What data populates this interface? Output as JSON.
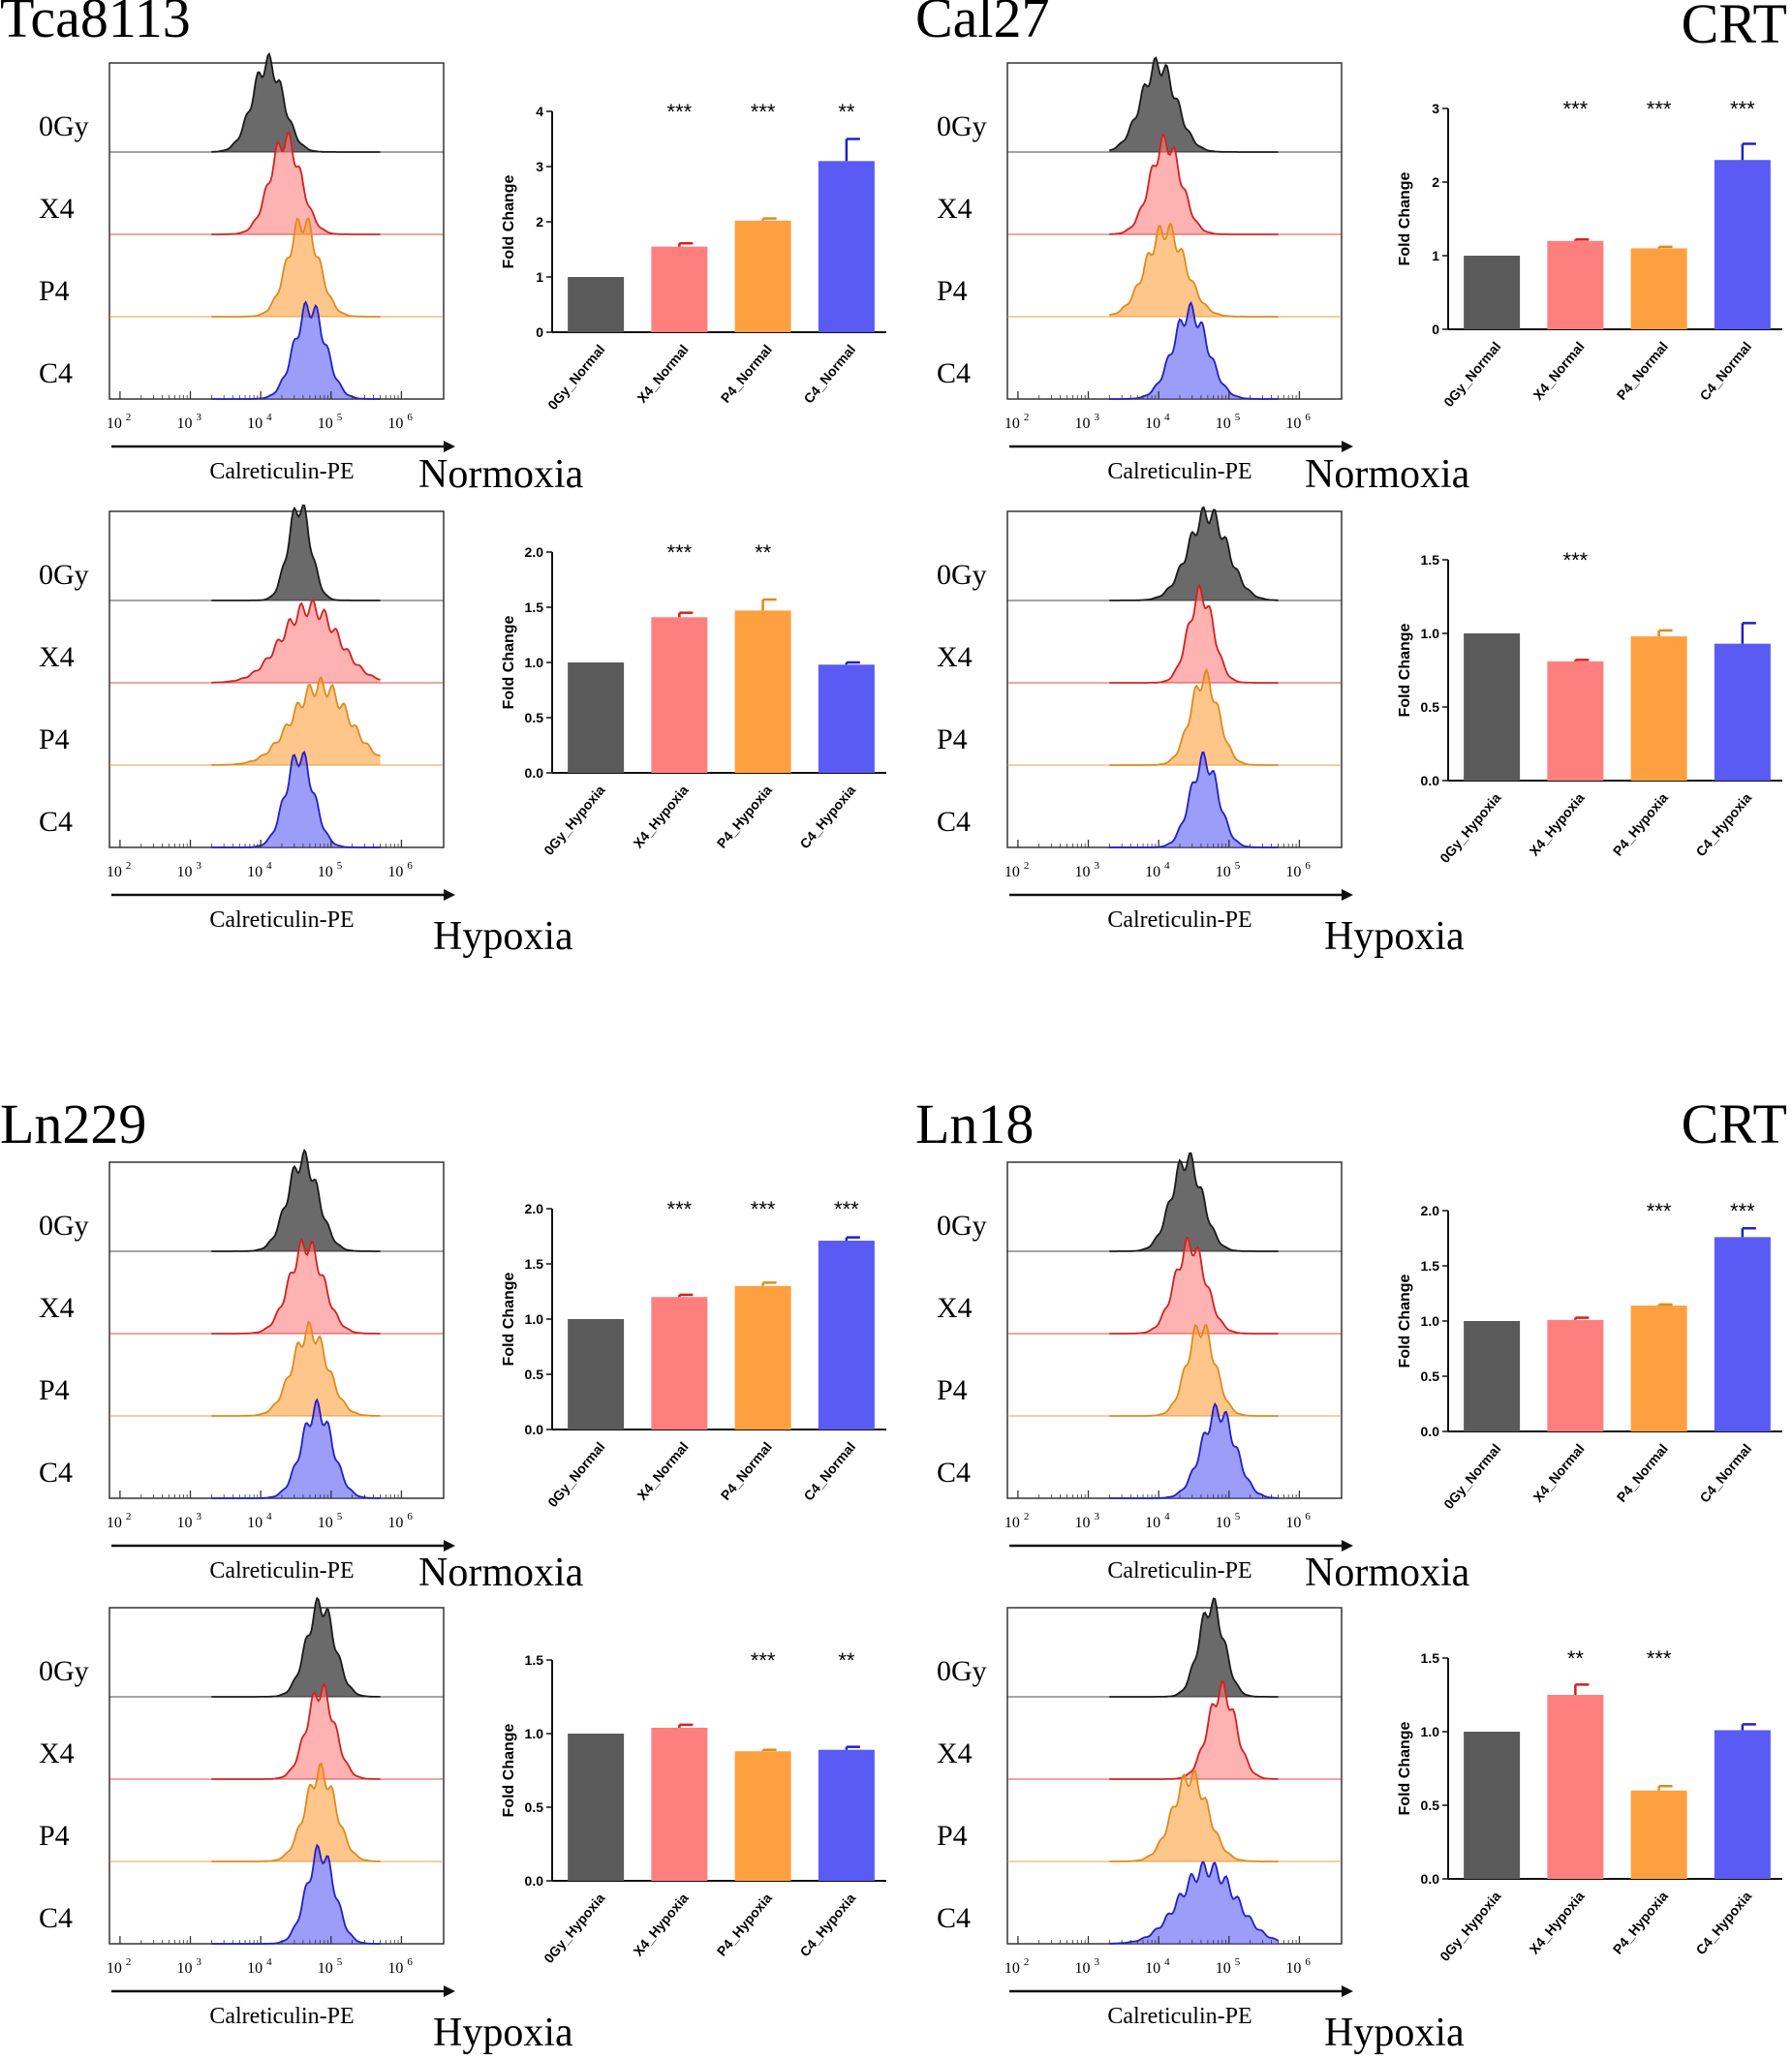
{
  "figure_label": "CRT",
  "hist_xlabel": "Calreticulin-PE",
  "hist_ticks": [
    "10",
    "10",
    "10",
    "10",
    "10"
  ],
  "hist_tick_exps": [
    "2",
    "3",
    "4",
    "5",
    "6"
  ],
  "row_labels": [
    "0Gy",
    "X4",
    "P4",
    "C4"
  ],
  "bar_ylabel": "Fold Change",
  "colors": {
    "0Gy": "#5a5a5a",
    "X4": "#ff7f7f",
    "P4": "#ffa040",
    "C4": "#5a5af5",
    "0Gy_curve": "#1a1a1a",
    "X4_curve": "#d42020",
    "P4_curve": "#e08a1a",
    "C4_curve": "#2020c8"
  },
  "panels": [
    {
      "cell_line": "Tca8113",
      "condition": "Normoxia",
      "chart_data": {
        "type": "bar",
        "title": "",
        "xlabel": "",
        "ylabel": "Fold Change",
        "categories": [
          "0Gy_Normal",
          "X4_Normal",
          "P4_Normal",
          "C4_Normal"
        ],
        "values": [
          1.0,
          1.55,
          2.02,
          3.1
        ],
        "errors": [
          0.0,
          0.06,
          0.04,
          0.4
        ],
        "significance": [
          "",
          "***",
          "***",
          "**"
        ],
        "ylim": [
          0,
          4
        ],
        "yticks": [
          "0",
          "1",
          "2",
          "3",
          "4"
        ]
      }
    },
    {
      "cell_line": "Cal27",
      "condition": "Normoxia",
      "chart_data": {
        "type": "bar",
        "title": "",
        "xlabel": "",
        "ylabel": "Fold Change",
        "categories": [
          "0Gy_Normal",
          "X4_Normal",
          "P4_Normal",
          "C4_Normal"
        ],
        "values": [
          1.0,
          1.2,
          1.1,
          2.3
        ],
        "errors": [
          0.0,
          0.02,
          0.02,
          0.22
        ],
        "significance": [
          "",
          "***",
          "***",
          "***"
        ],
        "ylim": [
          0,
          3
        ],
        "yticks": [
          "0",
          "1",
          "2",
          "3"
        ]
      }
    },
    {
      "cell_line": "Tca8113",
      "condition": "Hypoxia",
      "chart_data": {
        "type": "bar",
        "title": "",
        "xlabel": "",
        "ylabel": "Fold Change",
        "categories": [
          "0Gy_Hypoxia",
          "X4_Hypoxia",
          "P4_Hypoxia",
          "C4_Hypoxia"
        ],
        "values": [
          1.0,
          1.41,
          1.47,
          0.98
        ],
        "errors": [
          0.0,
          0.04,
          0.1,
          0.02
        ],
        "significance": [
          "",
          "***",
          "**",
          ""
        ],
        "ylim": [
          0,
          2
        ],
        "yticks": [
          "0.0",
          "0.5",
          "1.0",
          "1.5",
          "2.0"
        ]
      }
    },
    {
      "cell_line": "Cal27",
      "condition": "Hypoxia",
      "chart_data": {
        "type": "bar",
        "title": "",
        "xlabel": "",
        "ylabel": "Fold Change",
        "categories": [
          "0Gy_Hypoxia",
          "X4_Hypoxia",
          "P4_Hypoxia",
          "C4_Hypoxia"
        ],
        "values": [
          1.0,
          0.81,
          0.98,
          0.93
        ],
        "errors": [
          0.0,
          0.01,
          0.04,
          0.14
        ],
        "significance": [
          "",
          "***",
          "",
          ""
        ],
        "ylim": [
          0,
          1.5
        ],
        "yticks": [
          "0.0",
          "0.5",
          "1.0",
          "1.5"
        ]
      }
    },
    {
      "cell_line": "Ln229",
      "condition": "Normoxia",
      "chart_data": {
        "type": "bar",
        "title": "",
        "xlabel": "",
        "ylabel": "Fold Change",
        "categories": [
          "0Gy_Normal",
          "X4_Normal",
          "P4_Normal",
          "C4_Normal"
        ],
        "values": [
          1.0,
          1.2,
          1.3,
          1.71
        ],
        "errors": [
          0.0,
          0.02,
          0.03,
          0.03
        ],
        "significance": [
          "",
          "***",
          "***",
          "***"
        ],
        "ylim": [
          0,
          2
        ],
        "yticks": [
          "0.0",
          "0.5",
          "1.0",
          "1.5",
          "2.0"
        ]
      }
    },
    {
      "cell_line": "Ln18",
      "condition": "Normoxia",
      "chart_data": {
        "type": "bar",
        "title": "",
        "xlabel": "",
        "ylabel": "Fold Change",
        "categories": [
          "0Gy_Normal",
          "X4_Normal",
          "P4_Normal",
          "C4_Normal"
        ],
        "values": [
          1.0,
          1.01,
          1.14,
          1.76
        ],
        "errors": [
          0.0,
          0.02,
          0.01,
          0.08
        ],
        "significance": [
          "",
          "",
          "***",
          "***"
        ],
        "ylim": [
          0,
          2
        ],
        "yticks": [
          "0.0",
          "0.5",
          "1.0",
          "1.5",
          "2.0"
        ]
      }
    },
    {
      "cell_line": "Ln229",
      "condition": "Hypoxia",
      "chart_data": {
        "type": "bar",
        "title": "",
        "xlabel": "",
        "ylabel": "Fold Change",
        "categories": [
          "0Gy_Hypoxia",
          "X4_Hypoxia",
          "P4_Hypoxia",
          "C4_Hypoxia"
        ],
        "values": [
          1.0,
          1.04,
          0.88,
          0.89
        ],
        "errors": [
          0.0,
          0.02,
          0.01,
          0.02
        ],
        "significance": [
          "",
          "",
          "***",
          "**"
        ],
        "ylim": [
          0,
          1.5
        ],
        "yticks": [
          "0.0",
          "0.5",
          "1.0",
          "1.5"
        ]
      }
    },
    {
      "cell_line": "Ln18",
      "condition": "Hypoxia",
      "chart_data": {
        "type": "bar",
        "title": "",
        "xlabel": "",
        "ylabel": "Fold Change",
        "categories": [
          "0Gy_Hypoxia",
          "X4_Hypoxia",
          "P4_Hypoxia",
          "C4_Hypoxia"
        ],
        "values": [
          1.0,
          1.25,
          0.6,
          1.01
        ],
        "errors": [
          0.0,
          0.07,
          0.03,
          0.04
        ],
        "significance": [
          "",
          "**",
          "***",
          ""
        ],
        "ylim": [
          0,
          1.5
        ],
        "yticks": [
          "0.0",
          "0.5",
          "1.0",
          "1.5"
        ]
      }
    }
  ],
  "histograms": [
    {
      "peaks": [
        {
          "c": 4.1,
          "w": 0.22,
          "h": 0.92
        },
        {
          "c": 4.35,
          "w": 0.22,
          "h": 0.98
        },
        {
          "c": 4.6,
          "w": 0.22,
          "h": 0.98
        },
        {
          "c": 4.7,
          "w": 0.22,
          "h": 0.95
        }
      ]
    },
    {
      "peaks": [
        {
          "c": 4.0,
          "w": 0.25,
          "h": 0.9
        },
        {
          "c": 4.1,
          "w": 0.22,
          "h": 0.95
        },
        {
          "c": 4.1,
          "w": 0.28,
          "h": 0.9
        },
        {
          "c": 4.45,
          "w": 0.25,
          "h": 0.9
        }
      ]
    },
    {
      "peaks": [
        {
          "c": 4.55,
          "w": 0.16,
          "h": 0.98
        },
        {
          "c": 4.7,
          "w": 0.4,
          "h": 0.78
        },
        {
          "c": 4.85,
          "w": 0.4,
          "h": 0.82
        },
        {
          "c": 4.55,
          "w": 0.2,
          "h": 0.95
        }
      ]
    },
    {
      "peaks": [
        {
          "c": 4.7,
          "w": 0.28,
          "h": 0.9
        },
        {
          "c": 4.6,
          "w": 0.18,
          "h": 0.92
        },
        {
          "c": 4.65,
          "w": 0.2,
          "h": 0.9
        },
        {
          "c": 4.65,
          "w": 0.2,
          "h": 0.9
        }
      ]
    },
    {
      "peaks": [
        {
          "c": 4.6,
          "w": 0.22,
          "h": 0.95
        },
        {
          "c": 4.65,
          "w": 0.24,
          "h": 0.92
        },
        {
          "c": 4.7,
          "w": 0.25,
          "h": 0.88
        },
        {
          "c": 4.8,
          "w": 0.22,
          "h": 0.92
        }
      ]
    },
    {
      "peaks": [
        {
          "c": 4.4,
          "w": 0.22,
          "h": 0.95
        },
        {
          "c": 4.45,
          "w": 0.22,
          "h": 0.92
        },
        {
          "c": 4.6,
          "w": 0.2,
          "h": 0.92
        },
        {
          "c": 4.85,
          "w": 0.24,
          "h": 0.9
        }
      ]
    },
    {
      "peaks": [
        {
          "c": 4.85,
          "w": 0.2,
          "h": 0.95
        },
        {
          "c": 4.85,
          "w": 0.2,
          "h": 0.92
        },
        {
          "c": 4.85,
          "w": 0.22,
          "h": 0.92
        },
        {
          "c": 4.85,
          "w": 0.2,
          "h": 0.95
        }
      ]
    },
    {
      "peaks": [
        {
          "c": 4.75,
          "w": 0.18,
          "h": 0.95
        },
        {
          "c": 4.9,
          "w": 0.2,
          "h": 0.92
        },
        {
          "c": 4.45,
          "w": 0.25,
          "h": 0.88
        },
        {
          "c": 4.7,
          "w": 0.4,
          "h": 0.78
        }
      ]
    }
  ]
}
